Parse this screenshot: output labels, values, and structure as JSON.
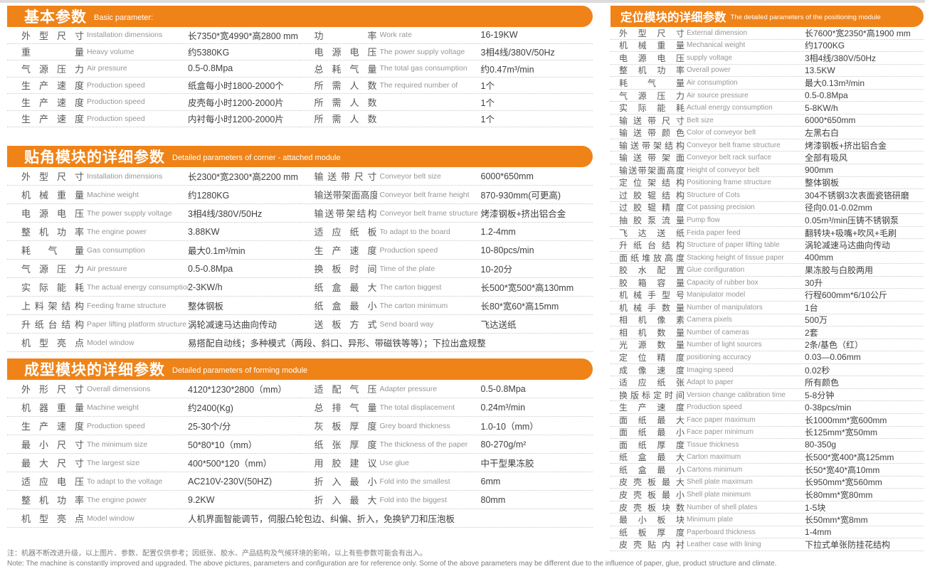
{
  "page": {
    "accent_color": "#EF8318",
    "note_cn": "注：机器不断改进升级，以上图片、参数、配置仅供参考；因纸张、胶水、产品结构及气候环境的影响，以上有些参数可能会有出入。",
    "note_en": "Note: The machine is constantly improved and upgraded. The above pictures, parameters and configuration are for reference only. Some of the above parameters may be different due to the influence of paper, glue, product structure and climate."
  },
  "tables": {
    "basic": {
      "title_cn": "基本参数",
      "title_en": "Basic parameter:",
      "left_rows": [
        {
          "cn": "外型尺寸",
          "en": "Installation dimensions",
          "value": "长7350*宽4990*高2800 mm"
        },
        {
          "cn": "重量",
          "en": "Heavy volume",
          "value": "约5380KG"
        },
        {
          "cn": "气源压力",
          "en": "Air pressure",
          "value": "0.5-0.8Mpa"
        },
        {
          "cn": "生产速度",
          "en": "Production speed",
          "value": "纸盒每小时1800-2000个"
        },
        {
          "cn": "生产速度",
          "en": "Production speed",
          "value": "皮壳每小时1200-2000片"
        },
        {
          "cn": "生产速度",
          "en": "Production speed",
          "value": "内衬每小时1200-2000片"
        }
      ],
      "right_rows": [
        {
          "cn": "功率",
          "en": "Work rate",
          "value": "16-19KW"
        },
        {
          "cn": "电源电压",
          "en": "The power supply voltage",
          "value": "3相4线/380V/50Hz"
        },
        {
          "cn": "总耗气量",
          "en": "The total gas consumption",
          "value": "约0.47m³/min"
        },
        {
          "cn": "所需人数",
          "en": "The required number of",
          "value": "1个"
        },
        {
          "cn": "所需人数",
          "en": "",
          "value": "1个"
        },
        {
          "cn": "所需人数",
          "en": "",
          "value": "1个"
        }
      ]
    },
    "corner": {
      "title_cn": "贴角模块的详细参数",
      "title_en": "Detailed parameters of corner - attached module",
      "left_rows": [
        {
          "cn": "外型尺寸",
          "en": "Installation dimensions",
          "value": "长2300*宽2300*高2200 mm"
        },
        {
          "cn": "机械重量",
          "en": "Machine weight",
          "value": "约1280KG"
        },
        {
          "cn": "电源电压",
          "en": "The power supply voltage",
          "value": "3相4线/380V/50Hz"
        },
        {
          "cn": "整机功率",
          "en": "The engine power",
          "value": "3.88KW"
        },
        {
          "cn": "耗气量",
          "en": "Gas consumption",
          "value": "最大0.1m³/min"
        },
        {
          "cn": "气源压力",
          "en": "Air pressure",
          "value": "0.5-0.8Mpa"
        },
        {
          "cn": "实际能耗",
          "en": "The actual energy consumption",
          "value": "2-3KW/h"
        },
        {
          "cn": "上料架结构",
          "en": "Feeding frame structure",
          "value": "整体钢板"
        },
        {
          "cn": "升纸台结构",
          "en": "Paper lifting platform structure",
          "value": "涡轮减速马达曲向传动"
        }
      ],
      "right_rows": [
        {
          "cn": "输送带尺寸",
          "en": "Conveyor belt size",
          "value": "6000*650mm"
        },
        {
          "cn": "输送带架面高度",
          "en": "Conveyor belt frame height",
          "value": "870-930mm(可更高)"
        },
        {
          "cn": "输送带架结构",
          "en": "Conveyor belt frame structure",
          "value": "烤漆钢板+挤出铝合金"
        },
        {
          "cn": "适应纸板",
          "en": "To adapt to the board",
          "value": "1.2-4mm"
        },
        {
          "cn": "生产速度",
          "en": "Production speed",
          "value": "10-80pcs/min"
        },
        {
          "cn": "换板时间",
          "en": "Time of the plate",
          "value": "10-20分"
        },
        {
          "cn": "纸盒最大",
          "en": "The carton biggest",
          "value": "长500*宽500*高130mm"
        },
        {
          "cn": "纸盒最小",
          "en": "The carton minimum",
          "value": "长80*宽60*高15mm"
        },
        {
          "cn": "送板方式",
          "en": "Send board way",
          "value": "飞达送纸"
        }
      ],
      "span_row": {
        "cn": "机型亮点",
        "en": "Model window",
        "value": "易搭配自动线；多种模式（两段、斜口、异形、带磁铁等等）；下拉出盒规整"
      }
    },
    "forming": {
      "title_cn": "成型模块的详细参数",
      "title_en": "Detailed parameters of forming module",
      "left_rows": [
        {
          "cn": "外形尺寸",
          "en": "Overall dimensions",
          "value": "4120*1230*2800（mm）"
        },
        {
          "cn": "机器重量",
          "en": "Machine weight",
          "value": "约2400(Kg)"
        },
        {
          "cn": "生产速度",
          "en": "Production speed",
          "value": "25-30个/分"
        },
        {
          "cn": "最小尺寸",
          "en": "The minimum size",
          "value": "50*80*10（mm）"
        },
        {
          "cn": "最大尺寸",
          "en": "The largest size",
          "value": "400*500*120（mm）"
        },
        {
          "cn": "适应电压",
          "en": "To adapt to the voltage",
          "value": "AC210V-230V(50HZ)"
        },
        {
          "cn": "整机功率",
          "en": "The engine power",
          "value": "9.2KW"
        }
      ],
      "right_rows": [
        {
          "cn": "适配气压",
          "en": "Adapter pressure",
          "value": "0.5-0.8Mpa"
        },
        {
          "cn": "总排气量",
          "en": "The total displacement",
          "value": "0.24m³/min"
        },
        {
          "cn": "灰板厚度",
          "en": "Grey board thickness",
          "value": "1.0-10（mm）"
        },
        {
          "cn": "纸张厚度",
          "en": "The thickness of the paper",
          "value": "80-270g/m²"
        },
        {
          "cn": "用胶建议",
          "en": "Use glue",
          "value": "中干型果冻胶"
        },
        {
          "cn": "折入最小",
          "en": "Fold into the smallest",
          "value": "6mm"
        },
        {
          "cn": "折入最大",
          "en": "Fold into the biggest",
          "value": "80mm"
        }
      ],
      "span_row": {
        "cn": "机型亮点",
        "en": "Model window",
        "value": "人机界面智能调节，伺服凸轮包边、纠偏、折入，免换铲刀和压泡板"
      }
    },
    "positioning": {
      "title_cn": "定位模块的详细参数",
      "title_en": "The detailed parameters of the positioning module",
      "rows": [
        {
          "cn": "外型尺寸",
          "en": "External dimension",
          "value": "长7600*宽2350*高1900 mm"
        },
        {
          "cn": "机械重量",
          "en": "Mechanical weight",
          "value": "约1700KG"
        },
        {
          "cn": "电源电压",
          "en": "supply voltage",
          "value": "3相4线/380V/50Hz"
        },
        {
          "cn": "整机功率",
          "en": "Overall power",
          "value": "13.5KW"
        },
        {
          "cn": "耗气量",
          "en": "Air consumption",
          "value": "最大0.13m³/min"
        },
        {
          "cn": "气源压力",
          "en": "Air source pressure",
          "value": "0.5-0.8Mpa"
        },
        {
          "cn": "实际能耗",
          "en": "Actual energy consumption",
          "value": "5-8KW/h"
        },
        {
          "cn": "输送带尺寸",
          "en": "Belt size",
          "value": "6000*650mm"
        },
        {
          "cn": "输送带颜色",
          "en": "Color of conveyor belt",
          "value": "左黑右白"
        },
        {
          "cn": "输送带架结构",
          "en": "Conveyor belt frame structure",
          "value": "烤漆钢板+挤出铝合金"
        },
        {
          "cn": "输送带架面",
          "en": "Conveyor belt rack surface",
          "value": "全部有吸风"
        },
        {
          "cn": "输送带架面高度",
          "en": "Height of conveyor belt",
          "value": "900mm"
        },
        {
          "cn": "定位架结构",
          "en": "Positioning frame structure",
          "value": "整体钢板"
        },
        {
          "cn": "过胶辊结构",
          "en": "Structure of Cots",
          "value": "304不锈钢3次表面瓷铬研磨"
        },
        {
          "cn": "过胶辊精度",
          "en": "Cot passing precision",
          "value": "径向0.01-0.02mm"
        },
        {
          "cn": "抽胶泵流量",
          "en": "Pump flow",
          "value": "0.05m³/min压铸不锈钢泵"
        },
        {
          "cn": "飞达送纸",
          "en": "Feida paper feed",
          "value": "翻转块+吸嘴+吹风+毛刷"
        },
        {
          "cn": "升纸台结构",
          "en": "Structure of paper lifting table",
          "value": "涡轮减速马达曲向传动"
        },
        {
          "cn": "面纸堆放高度",
          "en": "Stacking height of tissue paper",
          "value": "400mm"
        },
        {
          "cn": "胶水配置",
          "en": "Glue configuration",
          "value": "果冻胶与白胶两用"
        },
        {
          "cn": "胶箱容量",
          "en": "Capacity of rubber box",
          "value": "30升"
        },
        {
          "cn": "机械手型号",
          "en": "Manipulator model",
          "value": "行程600mm*6/10公斤"
        },
        {
          "cn": "机械手数量",
          "en": "Number of manipulators",
          "value": "1台"
        },
        {
          "cn": "相机像素",
          "en": "Camera pixels",
          "value": "500万"
        },
        {
          "cn": "相机数量",
          "en": "Number of cameras",
          "value": "2套"
        },
        {
          "cn": "光源数量",
          "en": "Number of light sources",
          "value": "2条/基色（红）"
        },
        {
          "cn": "定位精度",
          "en": "positioning accuracy",
          "value": "0.03—0.06mm"
        },
        {
          "cn": "成像速度",
          "en": "Imaging speed",
          "value": "0.02秒"
        },
        {
          "cn": "适应纸张",
          "en": "Adapt to paper",
          "value": "所有颜色"
        },
        {
          "cn": "换版标定时间",
          "en": "Version change calibration time",
          "value": "5-8分钟"
        },
        {
          "cn": "生产速度",
          "en": "Production speed",
          "value": "0-38pcs/min"
        },
        {
          "cn": "面纸最大",
          "en": "Face paper maximum",
          "value": "长1000mm*宽600mm"
        },
        {
          "cn": "面纸最小",
          "en": "Face paper minimum",
          "value": "长125mm*宽50mm"
        },
        {
          "cn": "面纸厚度",
          "en": "Tissue thickness",
          "value": "80-350g"
        },
        {
          "cn": "纸盒最大",
          "en": "Carton maximum",
          "value": "长500*宽400*高125mm"
        },
        {
          "cn": "纸盒最小",
          "en": "Cartons minimum",
          "value": "长50*宽40*高10mm"
        },
        {
          "cn": "皮壳板最大",
          "en": "Shell plate maximum",
          "value": "长950mm*宽560mm"
        },
        {
          "cn": "皮壳板最小",
          "en": "Shell plate minimum",
          "value": "长80mm*宽80mm"
        },
        {
          "cn": "皮壳板块数",
          "en": "Number of shell plates",
          "value": "1-5块"
        },
        {
          "cn": "最小板块",
          "en": "Minimum plate",
          "value": "长50mm*宽8mm"
        },
        {
          "cn": "纸板厚度",
          "en": "Paperboard thickness",
          "value": "1-4mm"
        },
        {
          "cn": "皮壳贴内衬",
          "en": "Leather case with lining",
          "value": "下拉式单张防挂花结构"
        }
      ]
    }
  }
}
